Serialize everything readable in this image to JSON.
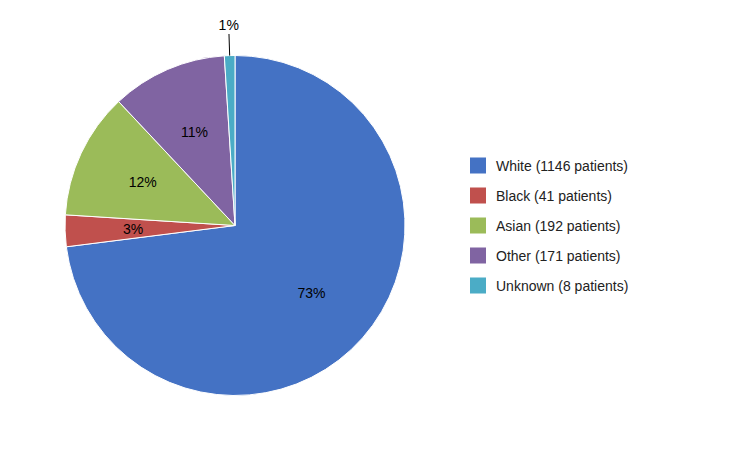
{
  "chart_data": {
    "type": "pie",
    "categories": [
      "White (1146 patients)",
      "Black (41 patients)",
      "Asian (192 patients)",
      "Other (171 patients)",
      "Unknown (8 patients)"
    ],
    "values": [
      73,
      3,
      12,
      11,
      1
    ],
    "value_labels": [
      "73%",
      "3%",
      "12%",
      "11%",
      "1%"
    ],
    "colors": [
      "#4472C4",
      "#C0504D",
      "#9BBB59",
      "#8064A2",
      "#4BACC6"
    ],
    "data_labels": true,
    "legend": "right"
  }
}
